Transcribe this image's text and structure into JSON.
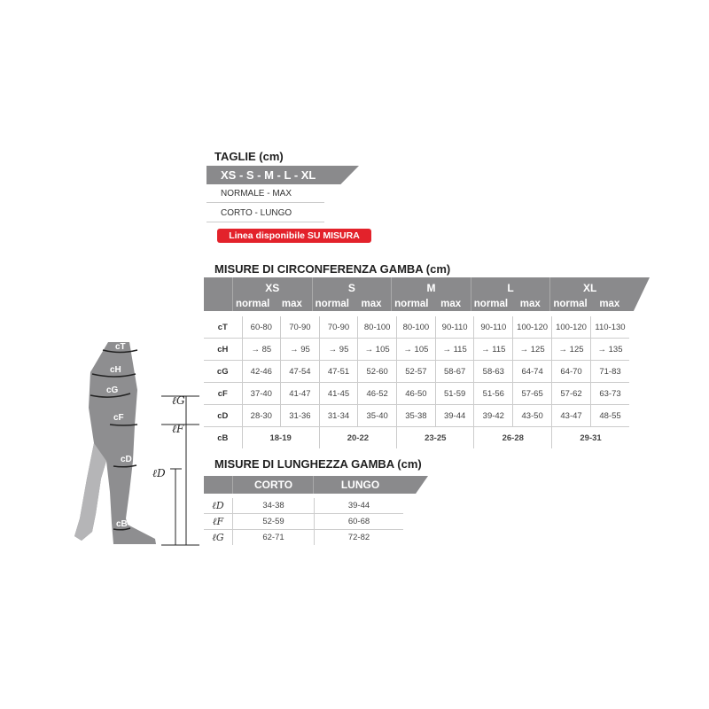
{
  "sizes": {
    "title": "TAGLIE (cm)",
    "band": "XS - S - M - L - XL",
    "row1": "NORMALE - MAX",
    "row2": "CORTO - LUNGO",
    "badge": "Linea disponibile SU MISURA",
    "badge_color": "#e3222b"
  },
  "circ": {
    "title": "MISURE DI CIRCONFERENZA GAMBA (cm)",
    "sizes": [
      "XS",
      "S",
      "M",
      "L",
      "XL"
    ],
    "sub": [
      "normal",
      "max"
    ],
    "rows": [
      {
        "label": "cT",
        "values": [
          "60-80",
          "70-90",
          "70-90",
          "80-100",
          "80-100",
          "90-110",
          "90-110",
          "100-120",
          "100-120",
          "110-130"
        ]
      },
      {
        "label": "cH",
        "values": [
          "→ 85",
          "→ 95",
          "→ 95",
          "→ 105",
          "→ 105",
          "→ 115",
          "→ 115",
          "→ 125",
          "→ 125",
          "→ 135"
        ]
      },
      {
        "label": "cG",
        "values": [
          "42-46",
          "47-54",
          "47-51",
          "52-60",
          "52-57",
          "58-67",
          "58-63",
          "64-74",
          "64-70",
          "71-83"
        ]
      },
      {
        "label": "cF",
        "values": [
          "37-40",
          "41-47",
          "41-45",
          "46-52",
          "46-50",
          "51-59",
          "51-56",
          "57-65",
          "57-62",
          "63-73"
        ]
      },
      {
        "label": "cD",
        "values": [
          "28-30",
          "31-36",
          "31-34",
          "35-40",
          "35-38",
          "39-44",
          "39-42",
          "43-50",
          "43-47",
          "48-55"
        ]
      }
    ],
    "cB": {
      "label": "cB",
      "values": [
        "18-19",
        "20-22",
        "23-25",
        "26-28",
        "29-31"
      ]
    }
  },
  "len": {
    "title": "MISURE DI LUNGHEZZA GAMBA (cm)",
    "cols": [
      "CORTO",
      "LUNGO"
    ],
    "rows": [
      {
        "label": "ℓD",
        "values": [
          "34-38",
          "39-44"
        ]
      },
      {
        "label": "ℓF",
        "values": [
          "52-59",
          "60-68"
        ]
      },
      {
        "label": "ℓG",
        "values": [
          "62-71",
          "72-82"
        ]
      }
    ]
  },
  "figure": {
    "labels": [
      "cT",
      "cH",
      "cG",
      "cF",
      "cD",
      "cB"
    ],
    "lengths": [
      "ℓG",
      "ℓF",
      "ℓD"
    ]
  },
  "header_gray": "#8a8a8c"
}
